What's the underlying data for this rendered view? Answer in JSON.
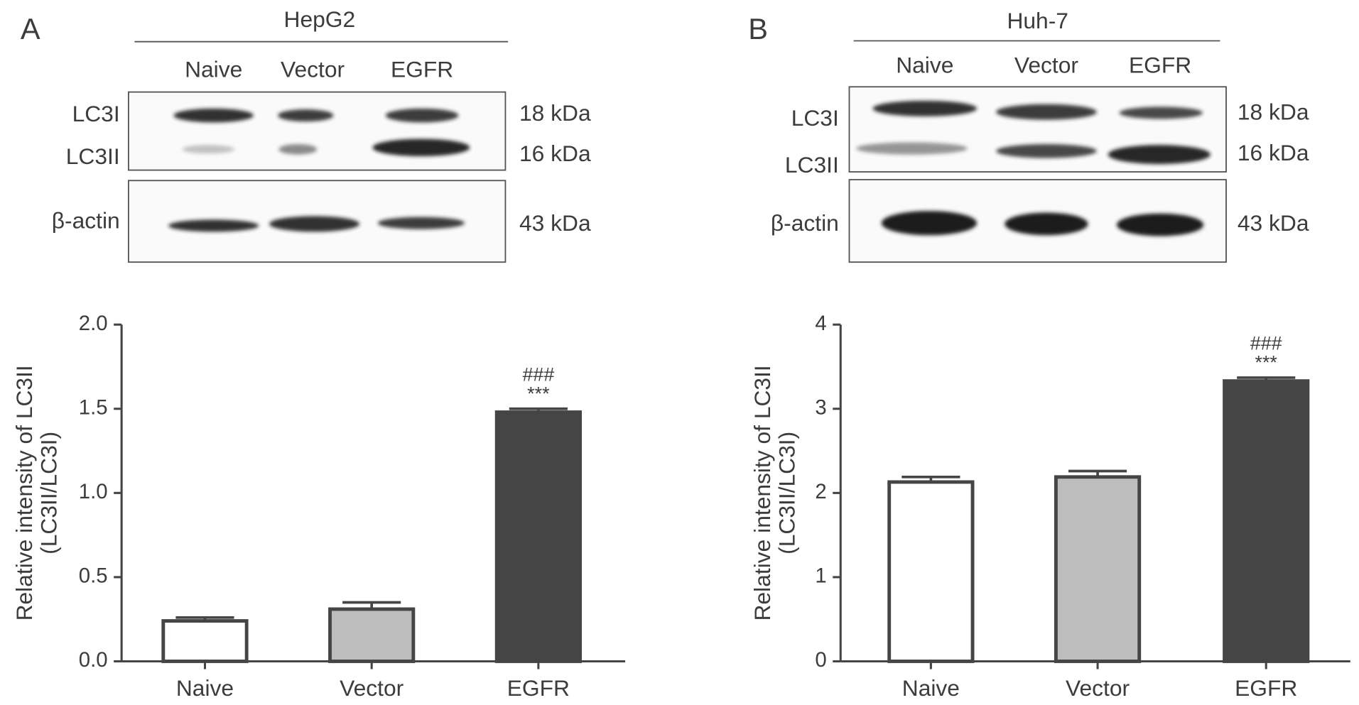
{
  "panel_letters": [
    "A",
    "B"
  ],
  "blots": [
    {
      "cell_line": "HepG2",
      "lanes": [
        "Naive",
        "Vector",
        "EGFR"
      ],
      "bands": [
        "LC3I",
        "LC3II",
        "β-actin"
      ],
      "sizes": [
        "18 kDa",
        "16 kDa",
        "43 kDa"
      ]
    },
    {
      "cell_line": "Huh-7",
      "lanes": [
        "Naive",
        "Vector",
        "EGFR"
      ],
      "bands": [
        "LC3I",
        "LC3II",
        "β-actin"
      ],
      "sizes": [
        "18 kDa",
        "16 kDa",
        "43 kDa"
      ]
    }
  ],
  "chart_data": [
    {
      "type": "bar",
      "y_label": [
        "Relative intensity of LC3II",
        "(LC3II/LC3I)"
      ],
      "categories": [
        "Naive",
        "Vector",
        "EGFR"
      ],
      "values": [
        0.24,
        0.31,
        1.48
      ],
      "errors": [
        0.02,
        0.04,
        0.02
      ],
      "colors": [
        "#ffffff",
        "#bdbdbd",
        "#454545"
      ],
      "edgecolor": "#454545",
      "value_annotations": [
        null,
        null,
        [
          "###",
          "***"
        ]
      ],
      "ylim": [
        0,
        2
      ],
      "yticks": [
        {
          "value": 0,
          "label": "0.0"
        },
        0.5,
        {
          "value": 1,
          "label": "1.0"
        },
        1.5,
        {
          "value": 2,
          "label": "2.0"
        }
      ]
    },
    {
      "type": "bar",
      "y_label": [
        "Relative intensity of LC3II",
        "(LC3II/LC3I)"
      ],
      "categories": [
        "Naive",
        "Vector",
        "EGFR"
      ],
      "values": [
        2.13,
        2.19,
        3.33
      ],
      "errors": [
        0.06,
        0.07,
        0.04
      ],
      "colors": [
        "#ffffff",
        "#bdbdbd",
        "#454545"
      ],
      "edgecolor": "#454545",
      "value_annotations": [
        null,
        null,
        [
          "###",
          "***"
        ]
      ],
      "ylim": [
        0,
        4
      ],
      "yticks": [
        0,
        1,
        2,
        3,
        4
      ]
    }
  ]
}
